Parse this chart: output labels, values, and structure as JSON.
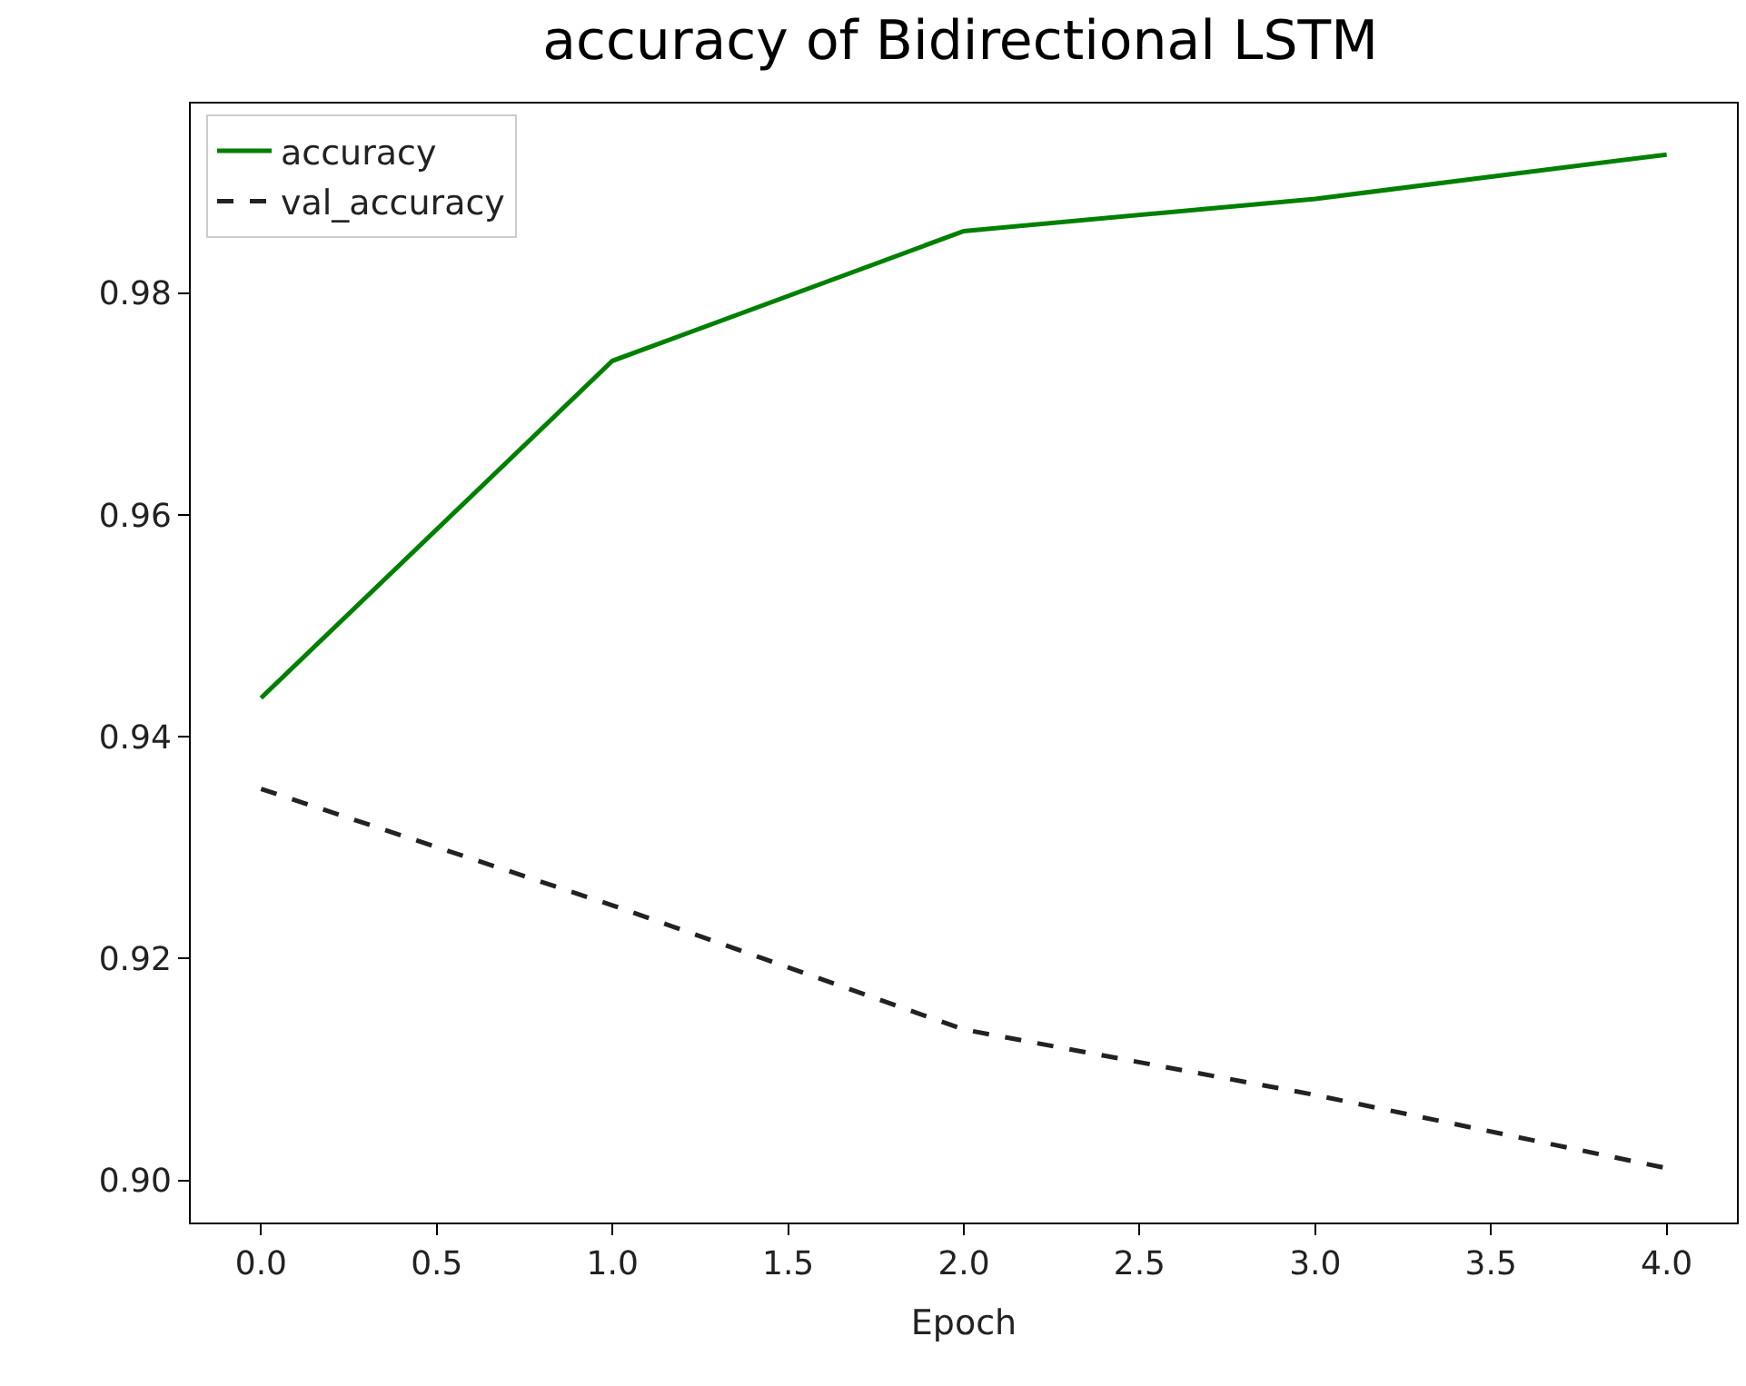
{
  "chart_data": {
    "type": "line",
    "title": "accuracy of Bidirectional LSTM",
    "xlabel": "Epoch",
    "x": [
      0,
      1,
      2,
      3,
      4
    ],
    "series": [
      {
        "name": "accuracy",
        "color": "#008000",
        "line_style": "solid",
        "values": [
          0.9435,
          0.9739,
          0.9856,
          0.9885,
          0.9925
        ]
      },
      {
        "name": "val_accuracy",
        "color": "#222222",
        "line_style": "dashed",
        "values": [
          0.9353,
          0.9248,
          0.9136,
          0.9077,
          0.9011
        ]
      }
    ],
    "xlim": [
      -0.2,
      4.2
    ],
    "xticks": [
      {
        "value": 0,
        "label": "0.0"
      },
      {
        "value": 0.5,
        "label": "0.5"
      },
      {
        "value": 1,
        "label": "1.0"
      },
      {
        "value": 1.5,
        "label": "1.5"
      },
      {
        "value": 2,
        "label": "2.0"
      },
      {
        "value": 2.5,
        "label": "2.5"
      },
      {
        "value": 3,
        "label": "3.0"
      },
      {
        "value": 3.5,
        "label": "3.5"
      },
      {
        "value": 4,
        "label": "4.0"
      }
    ],
    "ylim": [
      0.8962,
      0.9971
    ],
    "yticks": [
      {
        "value": 0.9,
        "label": "0.90"
      },
      {
        "value": 0.92,
        "label": "0.92"
      },
      {
        "value": 0.94,
        "label": "0.94"
      },
      {
        "value": 0.96,
        "label": "0.96"
      },
      {
        "value": 0.98,
        "label": "0.98"
      }
    ],
    "legend": "top left",
    "marker": "none"
  }
}
